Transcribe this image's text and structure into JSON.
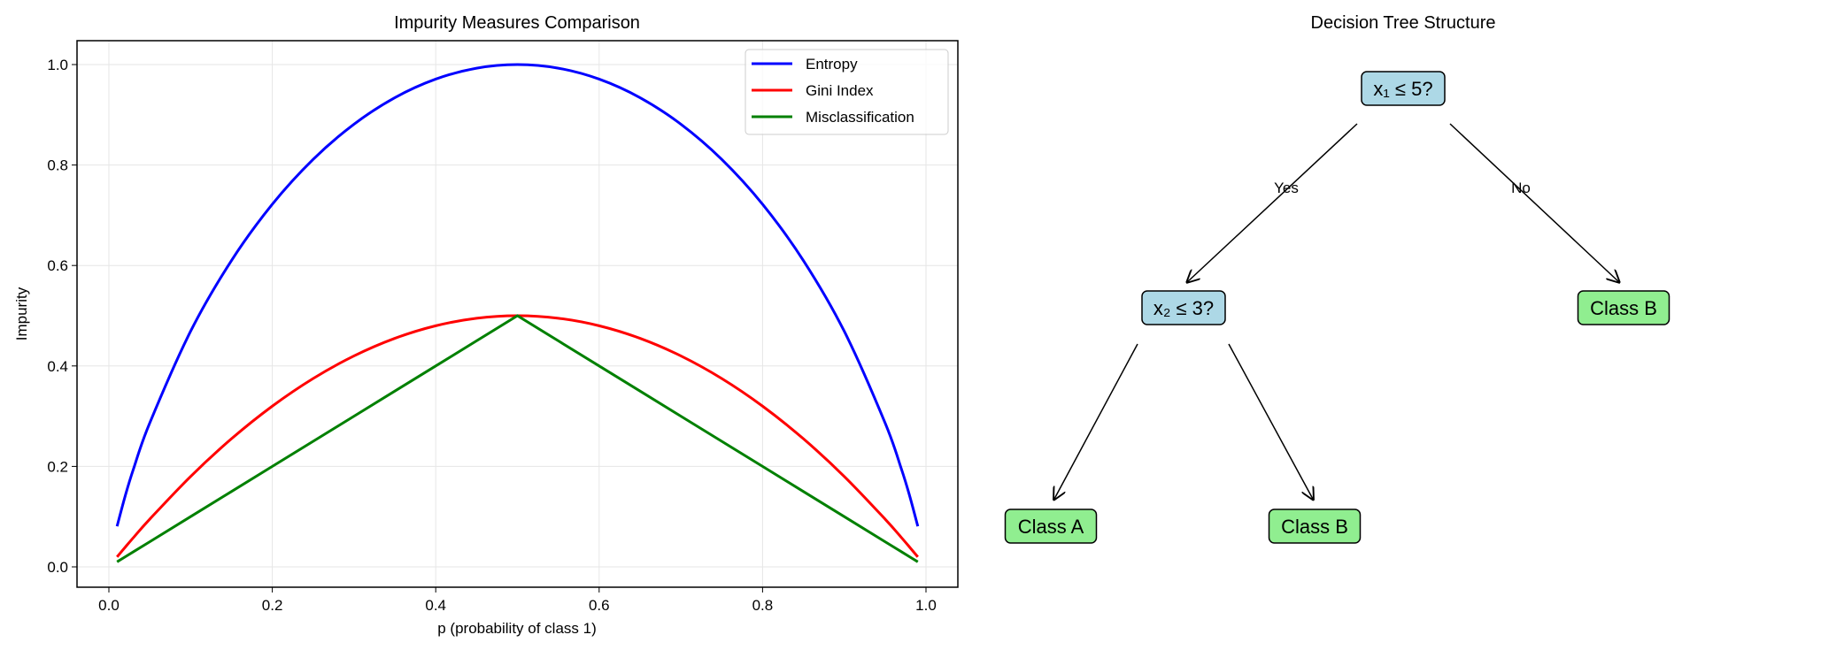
{
  "chart_data": [
    {
      "type": "line",
      "title": "Impurity Measures Comparison",
      "xlabel": "p (probability of class 1)",
      "ylabel": "Impurity",
      "xlim": [
        -0.04,
        1.04
      ],
      "ylim": [
        -0.05,
        1.05
      ],
      "xticks": [
        "0.0",
        "0.2",
        "0.4",
        "0.6",
        "0.8",
        "1.0"
      ],
      "yticks": [
        "0.0",
        "0.2",
        "0.4",
        "0.6",
        "0.8",
        "1.0"
      ],
      "grid": true,
      "legend_position": "top-right",
      "x": [
        0.01,
        0.02,
        0.03,
        0.05,
        0.1,
        0.15,
        0.2,
        0.25,
        0.3,
        0.35,
        0.4,
        0.45,
        0.5,
        0.55,
        0.6,
        0.65,
        0.7,
        0.75,
        0.8,
        0.85,
        0.9,
        0.95,
        0.97,
        0.98,
        0.99
      ],
      "series": [
        {
          "name": "Entropy",
          "color": "#0000ff",
          "values": [
            0.0808,
            0.1414,
            0.1944,
            0.2864,
            0.469,
            0.6098,
            0.7219,
            0.8113,
            0.8813,
            0.9341,
            0.971,
            0.9928,
            1.0,
            0.9928,
            0.971,
            0.9341,
            0.8813,
            0.8113,
            0.7219,
            0.6098,
            0.469,
            0.2864,
            0.1944,
            0.1414,
            0.0808
          ]
        },
        {
          "name": "Gini Index",
          "color": "#ff0000",
          "values": [
            0.0198,
            0.0392,
            0.0582,
            0.095,
            0.18,
            0.255,
            0.32,
            0.375,
            0.42,
            0.455,
            0.48,
            0.495,
            0.5,
            0.495,
            0.48,
            0.455,
            0.42,
            0.375,
            0.32,
            0.255,
            0.18,
            0.095,
            0.0582,
            0.0392,
            0.0198
          ]
        },
        {
          "name": "Misclassification",
          "color": "#008000",
          "values": [
            0.01,
            0.02,
            0.03,
            0.05,
            0.1,
            0.15,
            0.2,
            0.25,
            0.3,
            0.35,
            0.4,
            0.45,
            0.5,
            0.45,
            0.4,
            0.35,
            0.3,
            0.25,
            0.2,
            0.15,
            0.1,
            0.05,
            0.03,
            0.02,
            0.01
          ]
        }
      ]
    },
    {
      "type": "tree",
      "title": "Decision Tree Structure",
      "nodes": [
        {
          "label": "x₁ ≤ 5?",
          "kind": "decision",
          "color": "#add8e6"
        },
        {
          "label": "x₂ ≤ 3?",
          "kind": "decision",
          "color": "#add8e6"
        },
        {
          "label": "Class B",
          "kind": "leaf",
          "color": "#90ee90"
        },
        {
          "label": "Class A",
          "kind": "leaf",
          "color": "#90ee90"
        },
        {
          "label": "Class B",
          "kind": "leaf",
          "color": "#90ee90"
        }
      ],
      "edges": [
        {
          "from": 0,
          "to": 1,
          "label": "Yes"
        },
        {
          "from": 0,
          "to": 2,
          "label": "No"
        },
        {
          "from": 1,
          "to": 3,
          "label": ""
        },
        {
          "from": 1,
          "to": 4,
          "label": ""
        }
      ]
    }
  ]
}
